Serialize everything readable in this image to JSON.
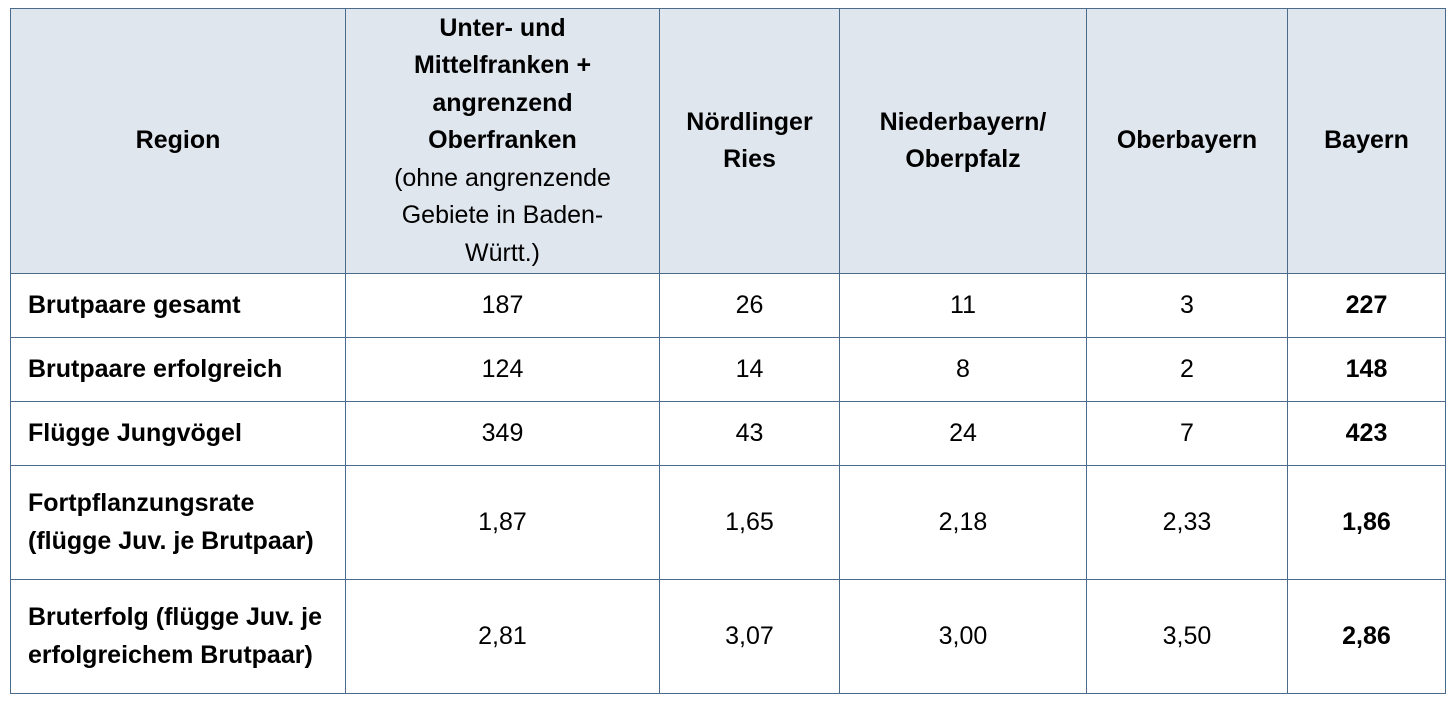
{
  "table": {
    "header": {
      "region": "Region",
      "col1_bold": "Unter- und Mittelfranken + angrenzend Oberfranken",
      "col1_note": "(ohne angrenzende Gebiete in Baden-Württ.)",
      "col2": "Nördlinger Ries",
      "col3": "Niederbayern/ Oberpfalz",
      "col4": "Oberbayern",
      "col5": "Bayern"
    },
    "rows": [
      {
        "label": "Brutpaare gesamt",
        "values": [
          "187",
          "26",
          "11",
          "3"
        ],
        "total": "227"
      },
      {
        "label": "Brutpaare erfolgreich",
        "values": [
          "124",
          "14",
          "8",
          "2"
        ],
        "total": "148"
      },
      {
        "label": "Flügge Jungvögel",
        "values": [
          "349",
          "43",
          "24",
          "7"
        ],
        "total": "423"
      },
      {
        "label": "Fortpflanzungsrate (flügge Juv. je Brutpaar)",
        "values": [
          "1,87",
          "1,65",
          "2,18",
          "2,33"
        ],
        "total": "1,86"
      },
      {
        "label": "Bruterfolg (flügge Juv. je erfolgreichem Brutpaar)",
        "values": [
          "2,81",
          "3,07",
          "3,00",
          "3,50"
        ],
        "total": "2,86"
      }
    ]
  }
}
